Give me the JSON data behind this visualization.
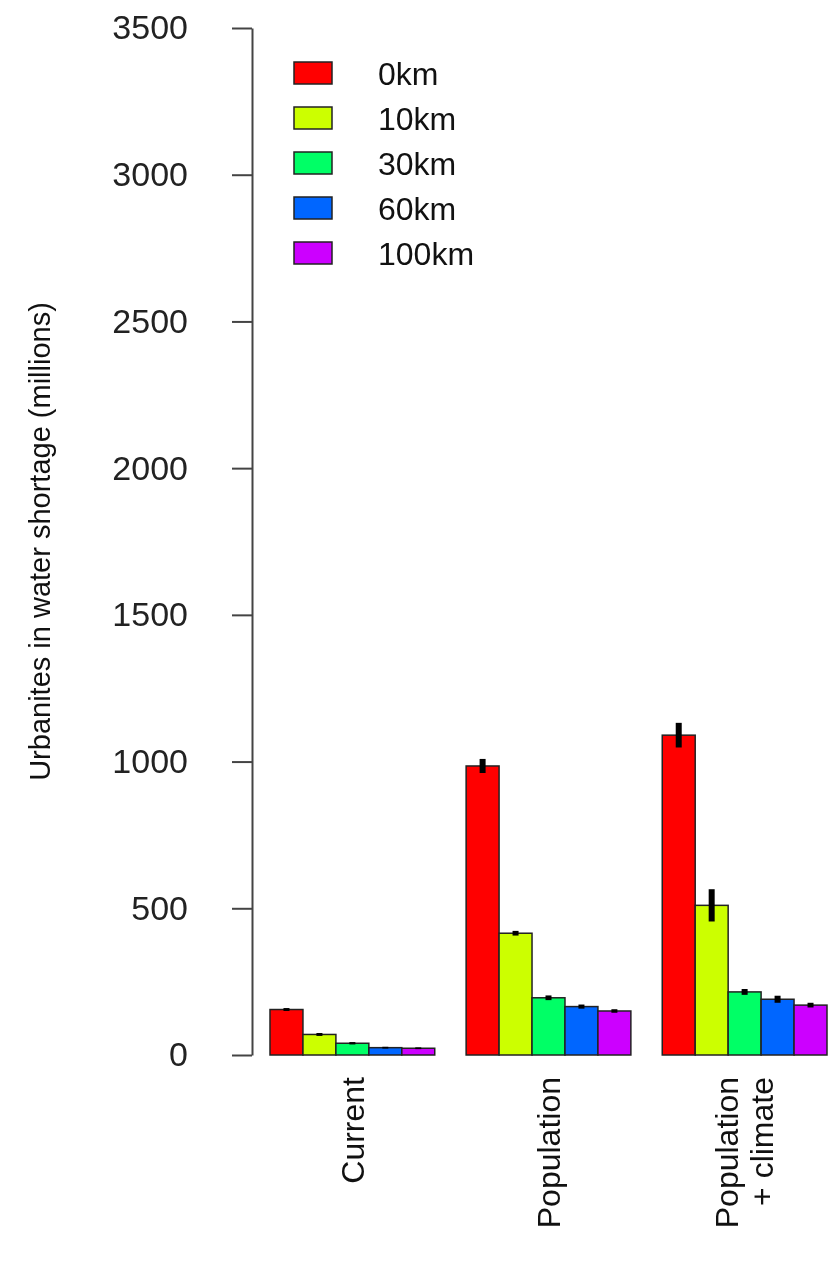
{
  "chart_data": {
    "type": "bar",
    "ylabel": "Urbanites in water shortage (millions)",
    "categories": [
      "Current",
      "Population",
      "Population\n+ climate"
    ],
    "series": [
      {
        "name": "0km",
        "color": "#ff0000",
        "values": [
          155,
          985,
          1090
        ],
        "errors": [
          5,
          24,
          42
        ]
      },
      {
        "name": "10km",
        "color": "#ccff00",
        "values": [
          70,
          415,
          510
        ],
        "errors": [
          5,
          8,
          55
        ]
      },
      {
        "name": "30km",
        "color": "#00ff66",
        "values": [
          40,
          195,
          215
        ],
        "errors": [
          4,
          8,
          10
        ]
      },
      {
        "name": "60km",
        "color": "#0066ff",
        "values": [
          25,
          165,
          190
        ],
        "errors": [
          3,
          7,
          12
        ]
      },
      {
        "name": "100km",
        "color": "#cc00ff",
        "values": [
          23,
          150,
          170
        ],
        "errors": [
          3,
          6,
          8
        ]
      }
    ],
    "ylim": [
      0,
      3500
    ],
    "yticks": [
      0,
      500,
      1000,
      1500,
      2000,
      2500,
      3000,
      3500
    ],
    "legend": "top left",
    "grid": false
  }
}
